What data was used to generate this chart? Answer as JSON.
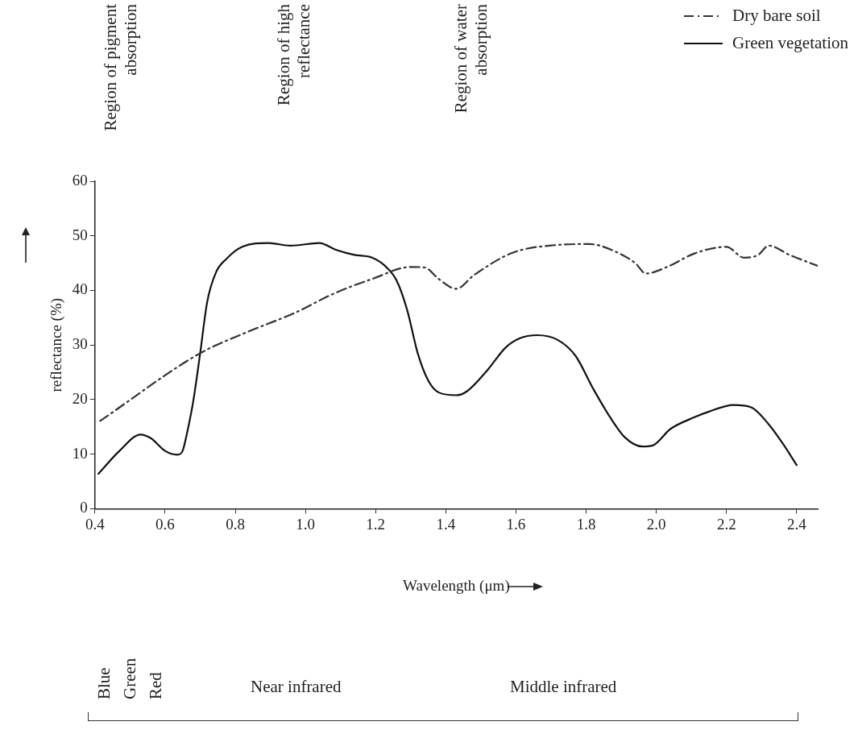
{
  "chart_data": {
    "type": "line",
    "xlabel": "Wavelength (μm)",
    "ylabel": "reflectance (%)",
    "xlim": [
      0.4,
      2.46
    ],
    "ylim": [
      0,
      60
    ],
    "xticks": [
      0.4,
      0.6,
      0.8,
      {
        "value": 1,
        "label": "1.0"
      },
      1.2,
      1.4,
      1.6,
      1.8,
      {
        "value": 2,
        "label": "2.0"
      },
      2.2,
      2.4
    ],
    "yticks": [
      0,
      10,
      20,
      30,
      40,
      50,
      60
    ],
    "grid": false,
    "legend": "top right",
    "marker": "none",
    "series": [
      {
        "name": "Dry bare soil",
        "color": "#333333",
        "line_style": "dashdot",
        "x": [
          0.415,
          0.7,
          0.835,
          0.97,
          1.08,
          1.19,
          1.3,
          1.34,
          1.38,
          1.43,
          1.48,
          1.59,
          1.71,
          1.81,
          1.87,
          1.94,
          1.97,
          2.03,
          2.11,
          2.2,
          2.25,
          2.29,
          2.32,
          2.38,
          2.46
        ],
        "values": [
          16.1,
          28.5,
          32.4,
          35.9,
          39.4,
          42.1,
          44.3,
          44.2,
          42.1,
          40.3,
          42.8,
          46.9,
          48.3,
          48.5,
          47.5,
          45,
          43.1,
          44.3,
          46.8,
          48,
          46,
          46.5,
          48.2,
          46.5,
          44.5
        ]
      },
      {
        "name": "Green vegetation",
        "color": "#111111",
        "line_style": "solid",
        "x": [
          0.41,
          0.47,
          0.53,
          0.56,
          0.6,
          0.635,
          0.65,
          0.66,
          0.68,
          0.7,
          0.72,
          0.745,
          0.775,
          0.82,
          0.895,
          0.957,
          1.04,
          1.085,
          1.14,
          1.19,
          1.23,
          1.26,
          1.29,
          1.32,
          1.35,
          1.38,
          1.43,
          1.46,
          1.52,
          1.57,
          1.61,
          1.66,
          1.72,
          1.77,
          1.82,
          1.87,
          1.91,
          1.96,
          1.99,
          2.04,
          2.11,
          2.15,
          2.22,
          2.27,
          2.32,
          2.36,
          2.4
        ],
        "values": [
          6.4,
          10.6,
          13.6,
          12.9,
          10.6,
          9.9,
          10.6,
          13.1,
          19.6,
          28.5,
          37.9,
          43.3,
          45.8,
          48,
          48.7,
          48.2,
          48.7,
          47.5,
          46.5,
          46,
          44.3,
          41.8,
          36.4,
          28.5,
          23.5,
          21.3,
          20.8,
          21.5,
          25.5,
          29.5,
          31.2,
          31.8,
          30.9,
          28,
          22,
          16.6,
          13.1,
          11.4,
          11.6,
          14.6,
          16.8,
          17.8,
          19,
          18.6,
          15.5,
          12,
          8
        ]
      }
    ],
    "annotations": [
      "Region of pigment absorption",
      "Region of high reflectance",
      "Region of water absorption",
      "Blue",
      "Green",
      "Red",
      "Near infrared",
      "Middle infrared"
    ]
  }
}
